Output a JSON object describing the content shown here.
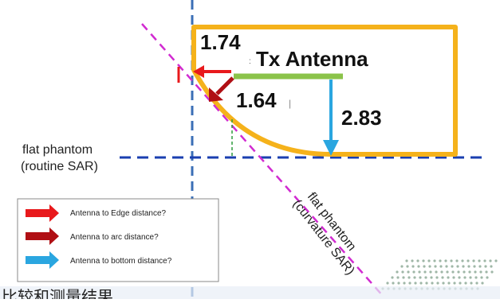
{
  "labels": {
    "edge_value": "1.74",
    "arc_value": "1.64",
    "bottom_value": "2.83",
    "antenna": "Tx Antenna",
    "flat_phantom_routine": [
      "flat phantom",
      "(routine SAR)"
    ],
    "flat_phantom_curvature": [
      "flat phantom",
      "(curvature SAR)"
    ],
    "bottom_caption": "比较和测量结果"
  },
  "legend": {
    "items": [
      {
        "label": "Antenna to Edge distance?",
        "color": "#e8191c"
      },
      {
        "label": "Antenna to arc distance?",
        "color": "#b00f14"
      },
      {
        "label": "Antenna to bottom distance?",
        "color": "#2aa6e0"
      }
    ]
  },
  "colors": {
    "device_outline": "#f5b21b",
    "antenna": "#8bc34a",
    "axis_dashed": "#3b6fb6",
    "phantom_line": "#1a3fb0",
    "diagonal": "#d12bd1",
    "dash_green": "#2e9b3e",
    "edge_arrow": "#e8191c",
    "arc_arrow": "#b00f14",
    "bottom_arrow": "#2aa6e0"
  }
}
